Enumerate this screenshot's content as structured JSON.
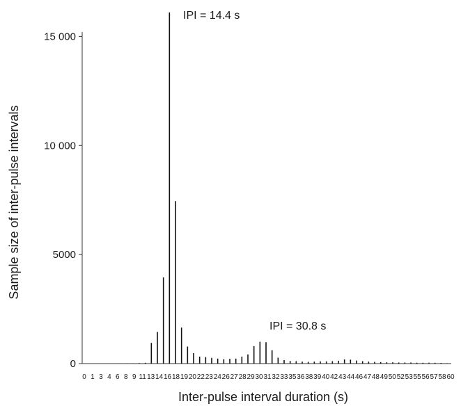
{
  "chart_data": {
    "type": "bar",
    "xlabel": "Inter-pulse interval duration (s)",
    "ylabel": "Sample size of inter-pulse intervals",
    "ylim": [
      0,
      16000
    ],
    "yticks": [
      0,
      5000,
      10000,
      15000
    ],
    "ytick_labels": [
      "0",
      "5000",
      "10 000",
      "15 000"
    ],
    "xtick_labels": [
      "0",
      "1",
      "3",
      "4",
      "6",
      "8",
      "9",
      "11",
      "13",
      "14",
      "16",
      "18",
      "19",
      "20",
      "22",
      "23",
      "24",
      "26",
      "27",
      "28",
      "29",
      "30",
      "31",
      "32",
      "33",
      "35",
      "36",
      "38",
      "39",
      "40",
      "42",
      "43",
      "44",
      "46",
      "47",
      "48",
      "49",
      "50",
      "52",
      "53",
      "55",
      "56",
      "57",
      "58",
      "60"
    ],
    "series": [
      {
        "x": [
          0,
          1,
          2,
          3,
          4,
          5,
          6,
          7,
          8,
          9,
          10,
          11,
          12,
          13,
          14,
          15,
          16,
          17,
          18,
          19,
          20,
          21,
          22,
          23,
          24,
          25,
          26,
          27,
          28,
          29,
          30,
          31,
          32,
          33,
          34,
          35,
          36,
          37,
          38,
          39,
          40,
          41,
          42,
          43,
          44,
          45,
          46,
          47,
          48,
          49,
          50,
          51,
          52,
          53,
          54,
          55,
          56,
          57,
          58,
          59,
          60
        ],
        "values": [
          0,
          0,
          0,
          0,
          0,
          0,
          5,
          10,
          15,
          25,
          40,
          950,
          1450,
          3950,
          16100,
          7450,
          1650,
          780,
          480,
          320,
          300,
          260,
          230,
          200,
          220,
          230,
          320,
          420,
          800,
          1000,
          980,
          610,
          270,
          160,
          120,
          110,
          90,
          80,
          90,
          100,
          100,
          110,
          130,
          190,
          180,
          140,
          110,
          90,
          80,
          70,
          60,
          60,
          50,
          50,
          50,
          40,
          40,
          40,
          40,
          30,
          20
        ]
      }
    ],
    "annotations": [
      {
        "text": "IPI = 14.4 s",
        "x": 14
      },
      {
        "text": "IPI = 30.8 s",
        "x": 30
      }
    ]
  }
}
